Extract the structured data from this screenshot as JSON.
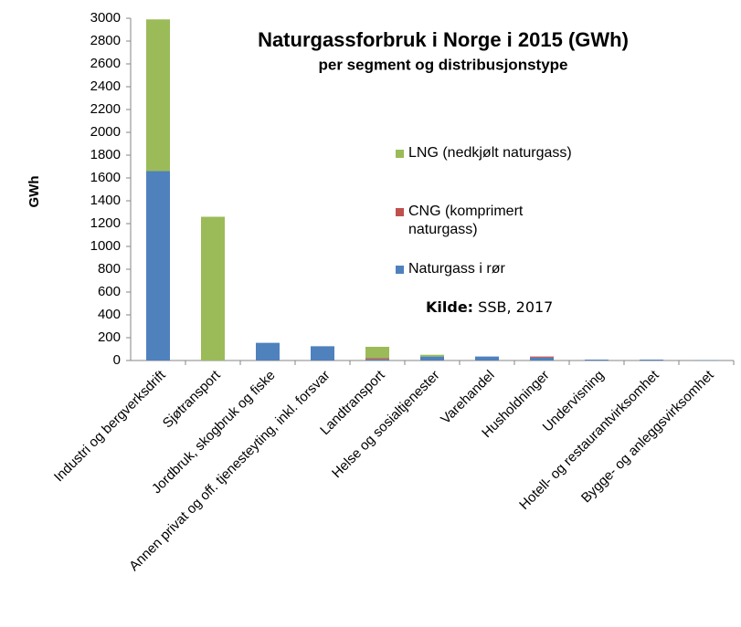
{
  "chart_data": {
    "type": "stacked_bar",
    "title": "Naturgassforbruk i Norge i 2015 (GWh)",
    "subtitle": "per segment og distribusjonstype",
    "y_label": "GWh",
    "source_label": "Kilde:",
    "source": "SSB, 2017",
    "categories": [
      "Industri og bergverksdrift",
      "Sjøtransport",
      "Jordbruk, skogbruk og fiske",
      "Annen privat og off. tjenesteyting, inkl. forsvar",
      "Landtransport",
      "Helse og sosialtjenester",
      "Varehandel",
      "Husholdninger",
      "Undervisning",
      "Hotell- og restaurantvirksomhet",
      "Bygge- og anleggsvirksomhet"
    ],
    "series": [
      {
        "name": "Naturgass i rør",
        "color": "#4f81bd",
        "values": [
          1660,
          0,
          155,
          125,
          10,
          35,
          35,
          25,
          8,
          8,
          3
        ]
      },
      {
        "name": "CNG (komprimert naturgass)",
        "color": "#c0504d",
        "values": [
          0,
          0,
          0,
          0,
          10,
          0,
          0,
          10,
          0,
          0,
          0
        ]
      },
      {
        "name": "LNG (nedkjølt naturgass)",
        "color": "#9bbb59",
        "values": [
          1330,
          1260,
          0,
          0,
          100,
          15,
          0,
          0,
          0,
          0,
          0
        ]
      }
    ],
    "ylim": [
      0,
      3000
    ],
    "yticks": [
      0,
      200,
      400,
      600,
      800,
      1000,
      1200,
      1400,
      1600,
      1800,
      2000,
      2200,
      2400,
      2600,
      2800,
      3000
    ],
    "grid": false
  }
}
